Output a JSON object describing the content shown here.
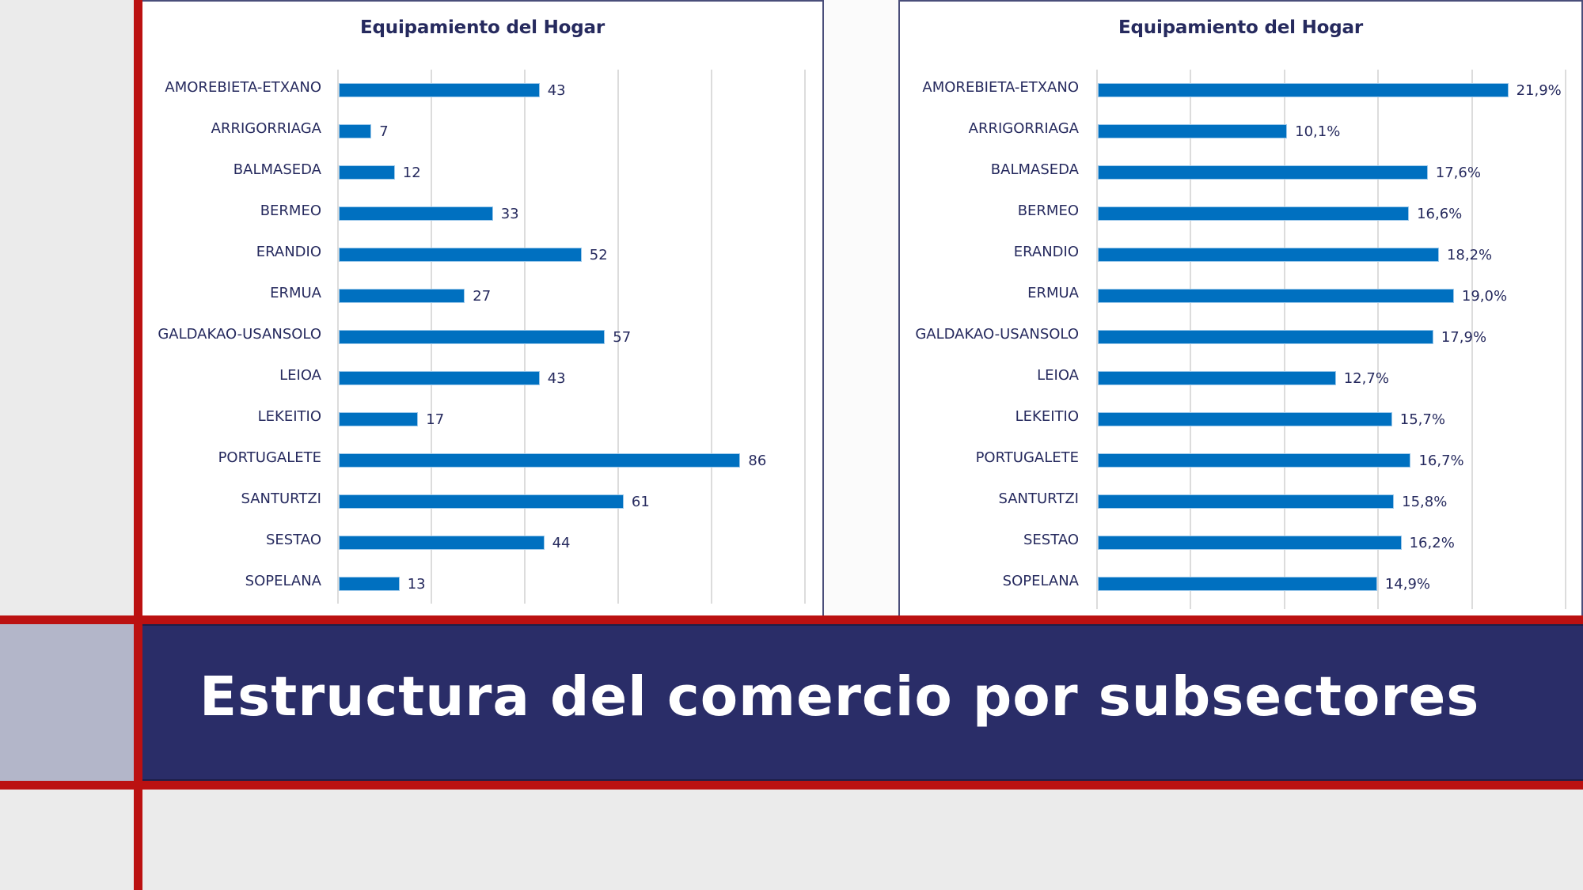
{
  "colors": {
    "background": "#ebebeb",
    "accent_red": "#bb1111",
    "banner_navy": "#2a2d68",
    "side_block": "#b3b6c9",
    "bar": "#0070c0",
    "text": "#262a5e",
    "gridline": "#dcdcdc"
  },
  "banner": {
    "title": "Estructura del comercio por subsectores"
  },
  "chart_data": [
    {
      "type": "bar",
      "orientation": "horizontal",
      "title": "Equipamiento del Hogar",
      "xlabel": "",
      "ylabel": "",
      "xlim": [
        0,
        100
      ],
      "grid_step": 20,
      "grid": true,
      "axis_tick_labels_visible": false,
      "categories": [
        "AMOREBIETA-ETXANO",
        "ARRIGORRIAGA",
        "BALMASEDA",
        "BERMEO",
        "ERANDIO",
        "ERMUA",
        "GALDAKAO-USANSOLO",
        "LEIOA",
        "LEKEITIO",
        "PORTUGALETE",
        "SANTURTZI",
        "SESTAO",
        "SOPELANA"
      ],
      "values": [
        43,
        7,
        12,
        33,
        52,
        27,
        57,
        43,
        17,
        86,
        61,
        44,
        13
      ],
      "value_labels": [
        "43",
        "7",
        "12",
        "33",
        "52",
        "27",
        "57",
        "43",
        "17",
        "86",
        "61",
        "44",
        "13"
      ]
    },
    {
      "type": "bar",
      "orientation": "horizontal",
      "title": "Equipamiento del Hogar",
      "xlabel": "",
      "ylabel": "",
      "xlim": [
        0,
        25
      ],
      "grid_step": 5,
      "grid": true,
      "axis_tick_labels_visible": false,
      "unit": "%",
      "categories": [
        "AMOREBIETA-ETXANO",
        "ARRIGORRIAGA",
        "BALMASEDA",
        "BERMEO",
        "ERANDIO",
        "ERMUA",
        "GALDAKAO-USANSOLO",
        "LEIOA",
        "LEKEITIO",
        "PORTUGALETE",
        "SANTURTZI",
        "SESTAO",
        "SOPELANA"
      ],
      "values": [
        21.9,
        10.1,
        17.6,
        16.6,
        18.2,
        19.0,
        17.9,
        12.7,
        15.7,
        16.7,
        15.8,
        16.2,
        14.9
      ],
      "value_labels": [
        "21,9%",
        "10,1%",
        "17,6%",
        "16,6%",
        "18,2%",
        "19,0%",
        "17,9%",
        "12,7%",
        "15,7%",
        "16,7%",
        "15,8%",
        "16,2%",
        "14,9%"
      ]
    }
  ]
}
